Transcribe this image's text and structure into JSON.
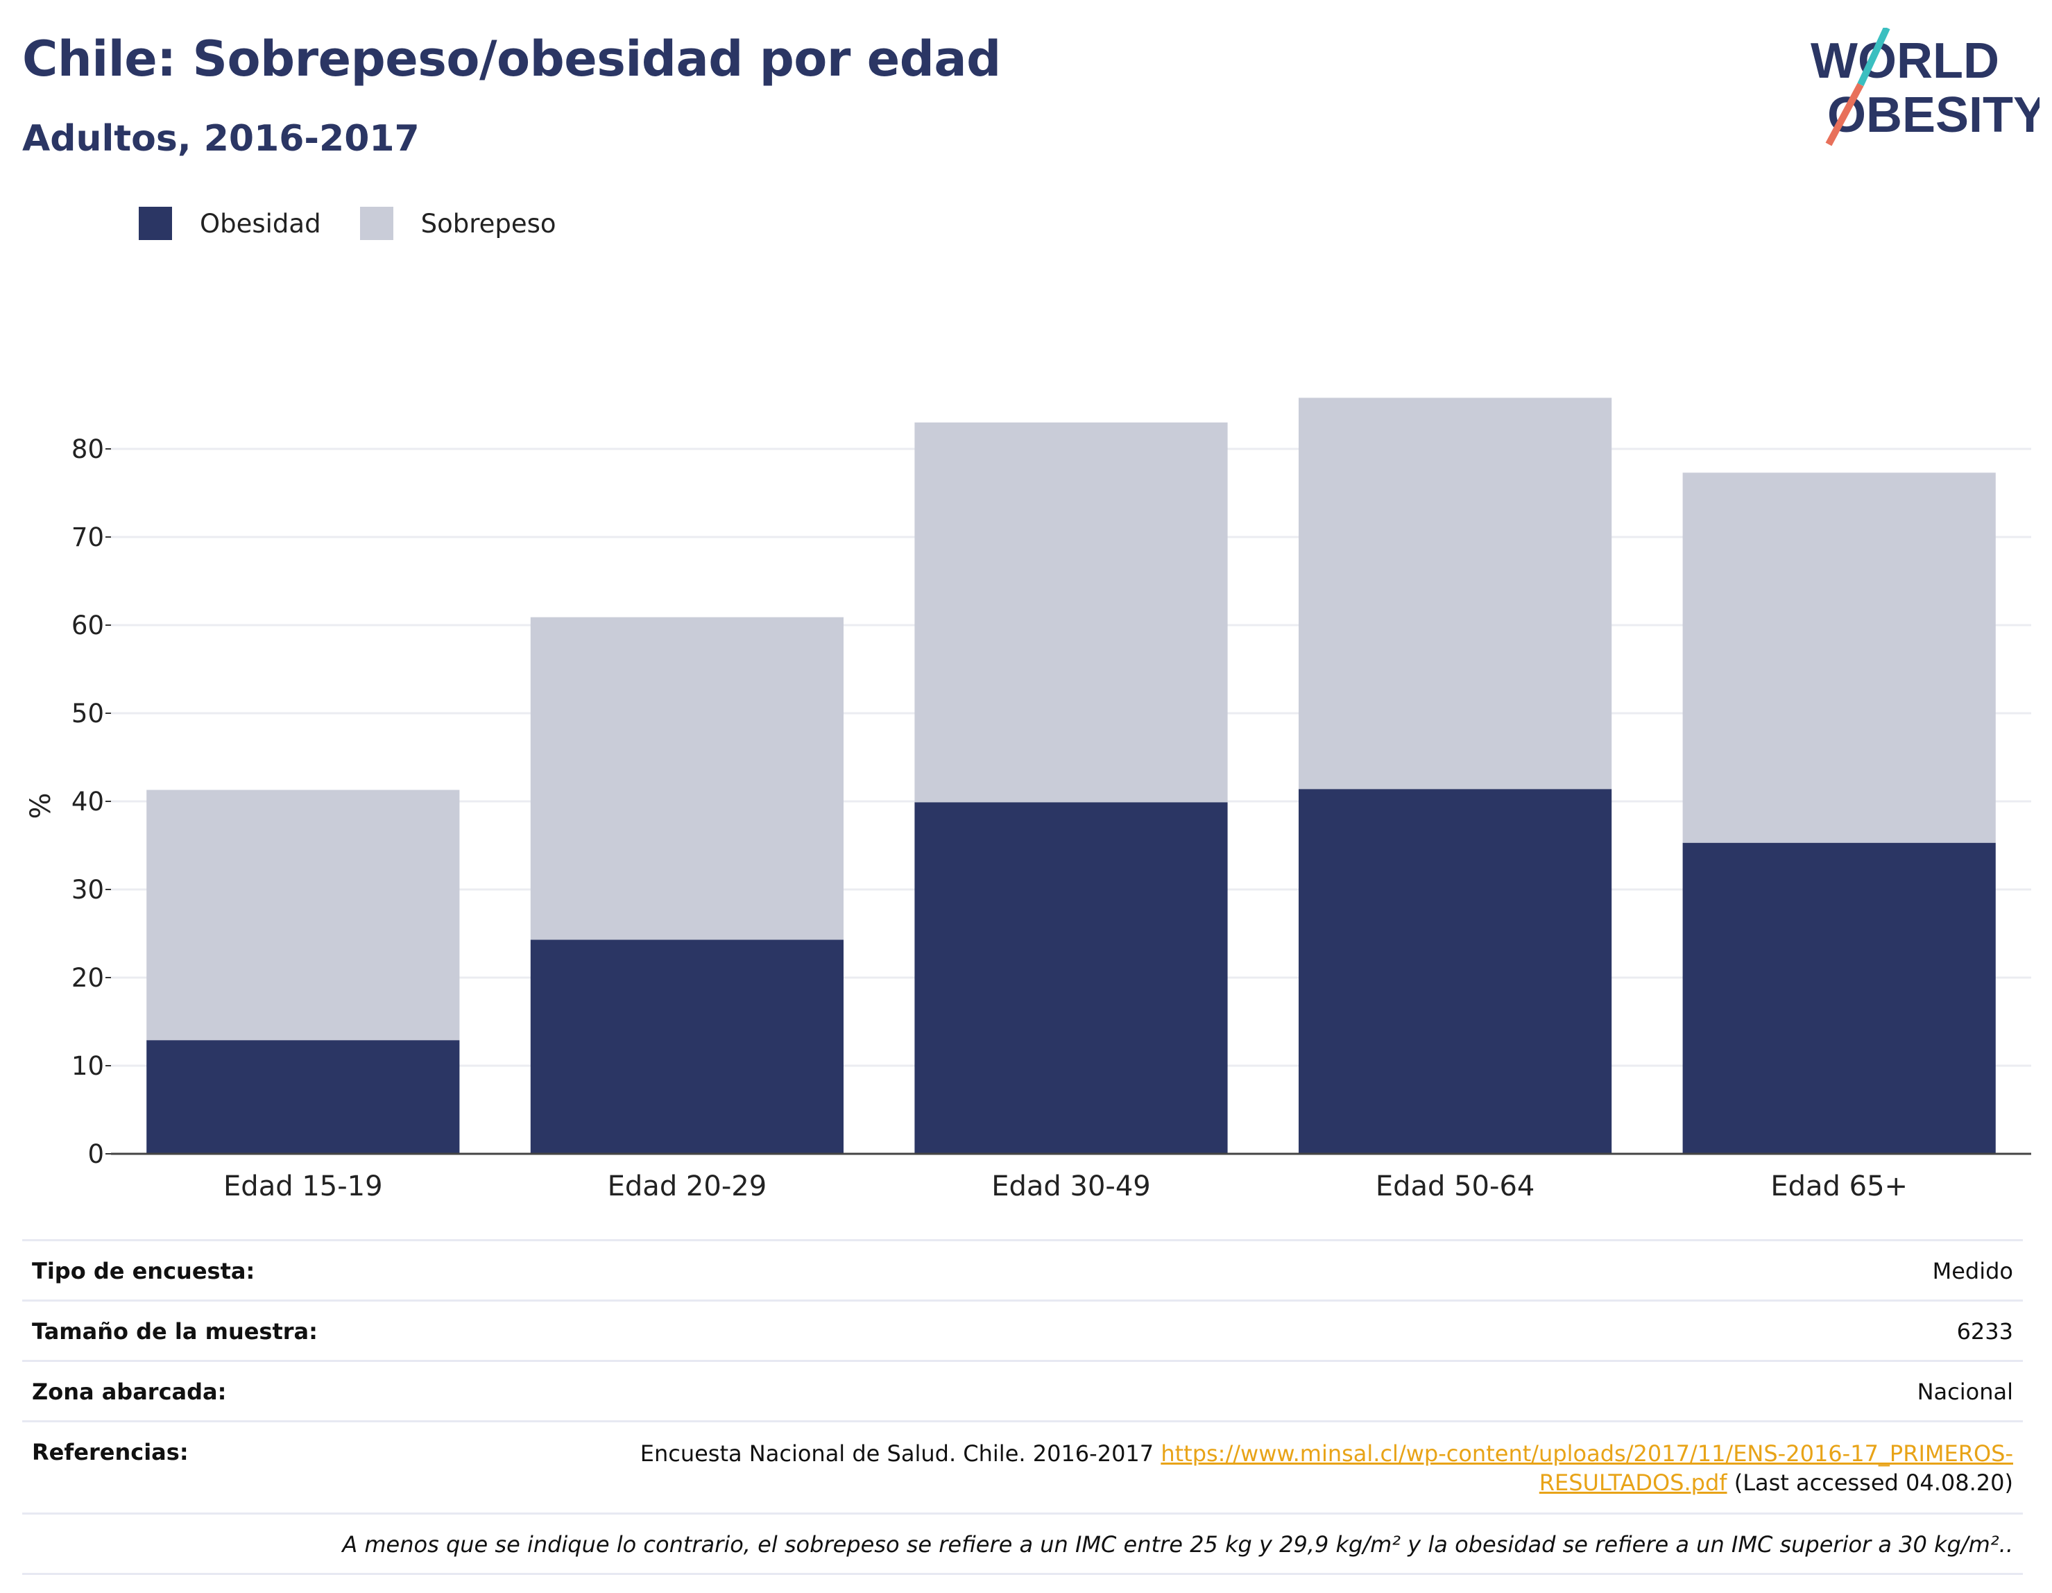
{
  "header": {
    "title": "Chile: Sobrepeso/obesidad por edad",
    "subtitle": "Adultos, 2016-2017"
  },
  "logo": {
    "line1": "WORLD",
    "line2": "OBESITY",
    "icon": "world-obesity-logo"
  },
  "legend": {
    "items": [
      {
        "label": "Obesidad",
        "color": "#2b3664"
      },
      {
        "label": "Sobrepeso",
        "color": "#c9ccd8"
      }
    ]
  },
  "chart_data": {
    "type": "bar",
    "stacked": true,
    "categories": [
      "Edad 15-19",
      "Edad 20-29",
      "Edad 30-49",
      "Edad 50-64",
      "Edad 65+"
    ],
    "series": [
      {
        "name": "Obesidad",
        "values": [
          12.9,
          24.3,
          39.9,
          41.4,
          35.3
        ],
        "color": "#2b3664"
      },
      {
        "name": "Sobrepeso",
        "values": [
          28.4,
          36.6,
          43.1,
          44.4,
          42.0
        ],
        "color": "#c9ccd8"
      }
    ],
    "ylabel": "%",
    "xlabel": "",
    "ylim": [
      0,
      90
    ],
    "yticks": [
      0,
      10,
      20,
      30,
      40,
      50,
      60,
      70,
      80
    ],
    "grid": true,
    "legend_position": "top-left"
  },
  "info": {
    "survey_type_label": "Tipo de encuesta:",
    "survey_type_value": "Medido",
    "sample_size_label": "Tamaño de la muestra:",
    "sample_size_value": "6233",
    "area_label": "Zona abarcada:",
    "area_value": "Nacional",
    "references_label": "Referencias:",
    "references_text": "Encuesta Nacional de Salud. Chile. 2016-2017 ",
    "references_link": "https://www.minsal.cl/wp-content/uploads/2017/11/ENS-2016-17_PRIMEROS-RESULTADOS.pdf",
    "references_suffix": " (Last accessed 04.08.20)",
    "note": "A menos que se indique lo contrario, el sobrepeso se refiere a un IMC entre 25 kg y 29,9 kg/m² y la obesidad se refiere a un IMC superior a 30 kg/m².."
  }
}
